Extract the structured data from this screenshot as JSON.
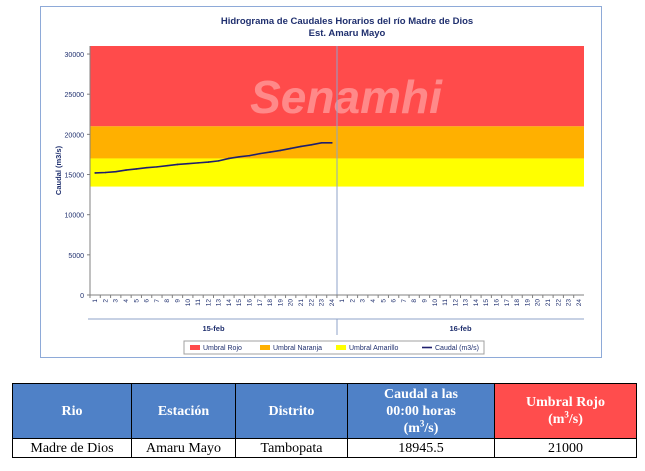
{
  "watermark": "Senamhi",
  "chart_data": {
    "type": "line",
    "title": "Hidrograma de Caudales Horarios del río Madre de Dios",
    "subtitle": "Est. Amaru Mayo",
    "ylabel": "Caudal  (m3/s)",
    "ylim": [
      0,
      31000
    ],
    "yticks": [
      0,
      5000,
      10000,
      15000,
      20000,
      25000,
      30000
    ],
    "hour_ticks": [
      "1",
      "2",
      "3",
      "4",
      "5",
      "6",
      "7",
      "8",
      "9",
      "10",
      "11",
      "12",
      "13",
      "14",
      "15",
      "16",
      "17",
      "18",
      "19",
      "20",
      "21",
      "22",
      "23",
      "24"
    ],
    "day_groups": [
      "15-feb",
      "16-feb"
    ],
    "thresholds": [
      {
        "name": "Umbral Rojo",
        "from": 21000,
        "to": 31000,
        "color": "#ff4b4b"
      },
      {
        "name": "Umbral Naranja",
        "from": 17000,
        "to": 21000,
        "color": "#ffb000"
      },
      {
        "name": "Umbral Amarillo",
        "from": 13500,
        "to": 17000,
        "color": "#ffff00"
      }
    ],
    "series": [
      {
        "name": "Caudal (m3/s)",
        "color": "#1f1f6e",
        "x": [
          1,
          2,
          3,
          4,
          5,
          6,
          7,
          8,
          9,
          10,
          11,
          12,
          13,
          14,
          15,
          16,
          17,
          18,
          19,
          20,
          21,
          22,
          23,
          24
        ],
        "values": [
          15200,
          15250,
          15350,
          15550,
          15700,
          15850,
          15950,
          16100,
          16250,
          16350,
          16450,
          16550,
          16700,
          17000,
          17200,
          17350,
          17600,
          17800,
          18000,
          18250,
          18500,
          18700,
          18950,
          18945.5
        ]
      }
    ],
    "legend": [
      "Umbral Rojo",
      "Umbral Naranja",
      "Umbral Amarillo",
      "Caudal (m3/s)"
    ],
    "legend_position": "bottom"
  },
  "table": {
    "headers": [
      "Rio",
      "Estación",
      "Distrito",
      "Caudal a las 00:00 horas (m",
      "Umbral Rojo (m"
    ],
    "header_caudal_line1": "Caudal a las",
    "header_caudal_line2": "00:00 horas",
    "header_caudal_unit": "(m",
    "header_rojo_line1": "Umbral Rojo",
    "header_rojo_unit": "(m",
    "sup3": "3",
    "unit_close": "/s)",
    "row": [
      "Madre de Dios",
      "Amaru Mayo",
      "Tambopata",
      "18945.5",
      "21000"
    ]
  }
}
